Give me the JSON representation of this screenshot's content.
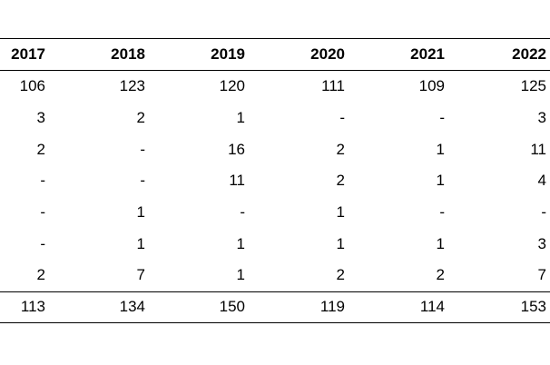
{
  "table": {
    "header": [
      "2017",
      "2018",
      "2019",
      "2020",
      "2021",
      "2022"
    ],
    "rows": [
      [
        106,
        123,
        120,
        111,
        109,
        125
      ],
      [
        3,
        2,
        1,
        "-",
        "-",
        3
      ],
      [
        2,
        "-",
        16,
        2,
        1,
        11
      ],
      [
        "-",
        "-",
        11,
        2,
        1,
        4
      ],
      [
        "-",
        1,
        "-",
        1,
        "-",
        "-"
      ],
      [
        "-",
        1,
        1,
        1,
        1,
        3
      ],
      [
        2,
        7,
        1,
        2,
        2,
        7
      ]
    ],
    "totals": [
      113,
      134,
      150,
      119,
      114,
      153
    ]
  }
}
